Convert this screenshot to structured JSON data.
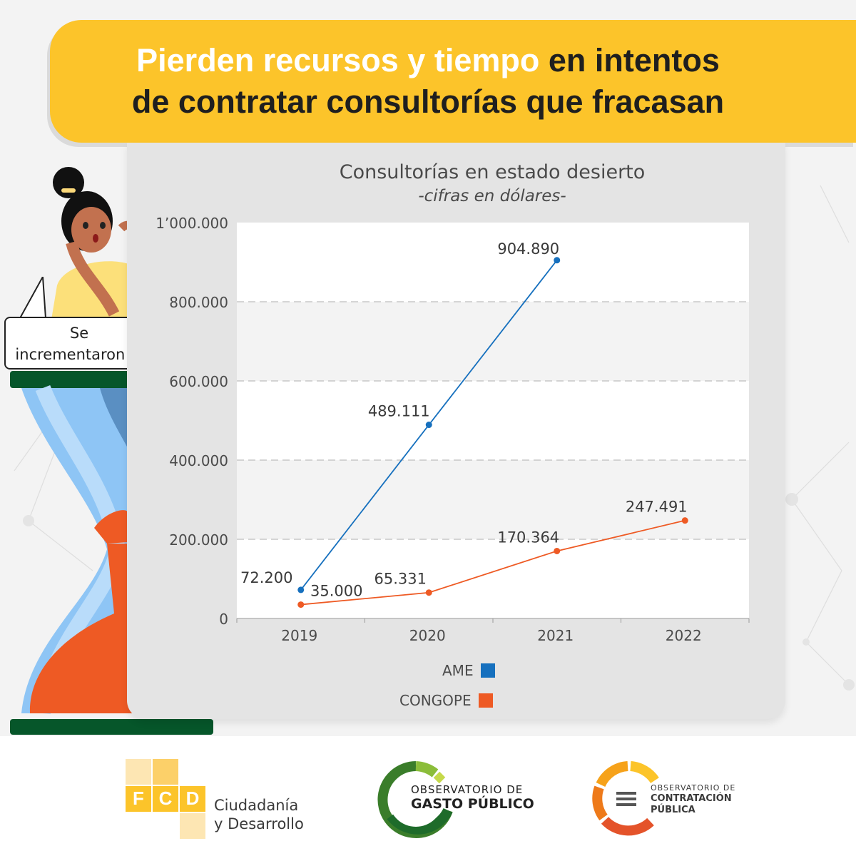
{
  "banner": {
    "line1_highlight": "Pierden recursos y tiempo",
    "line1_rest": " en intentos",
    "line2": "de contratar consultorías que fracasan"
  },
  "speech_bubble": {
    "line1": "Se",
    "line2": "incrementaron!!!"
  },
  "chart_data": {
    "type": "line",
    "title": "Consultorías en estado desierto",
    "subtitle": "-cifras en dólares-",
    "categories": [
      "2019",
      "2020",
      "2021",
      "2022"
    ],
    "ylim": [
      0,
      1000000
    ],
    "y_ticks": [
      0,
      200000,
      400000,
      600000,
      800000,
      1000000
    ],
    "y_tick_labels": [
      "0",
      "200.000",
      "400.000",
      "600.000",
      "800.000",
      "1’000.000"
    ],
    "grid": true,
    "legend_position": "bottom",
    "series": [
      {
        "name": "AME",
        "color": "#1670be",
        "values": [
          72200,
          489111,
          904890,
          null
        ],
        "labels": [
          "72.200",
          "489.111",
          "904.890",
          null
        ]
      },
      {
        "name": "CONGOPE",
        "color": "#ee5a24",
        "values": [
          35000,
          65331,
          170364,
          247491
        ],
        "labels": [
          "35.000",
          "65.331",
          "170.364",
          "247.491"
        ]
      }
    ]
  },
  "logos": {
    "fcd": {
      "letters": [
        "F",
        "C",
        "D"
      ],
      "name_line1": "Ciudadanía",
      "name_line2": "y Desarrollo"
    },
    "ogp": {
      "line1": "OBSERVATORIO DE",
      "line2": "GASTO PÚBLICO"
    },
    "ocp": {
      "line1": "OBSERVATORIO DE",
      "line2": "CONTRATACIÓN",
      "line3": "PÚBLICA"
    }
  }
}
